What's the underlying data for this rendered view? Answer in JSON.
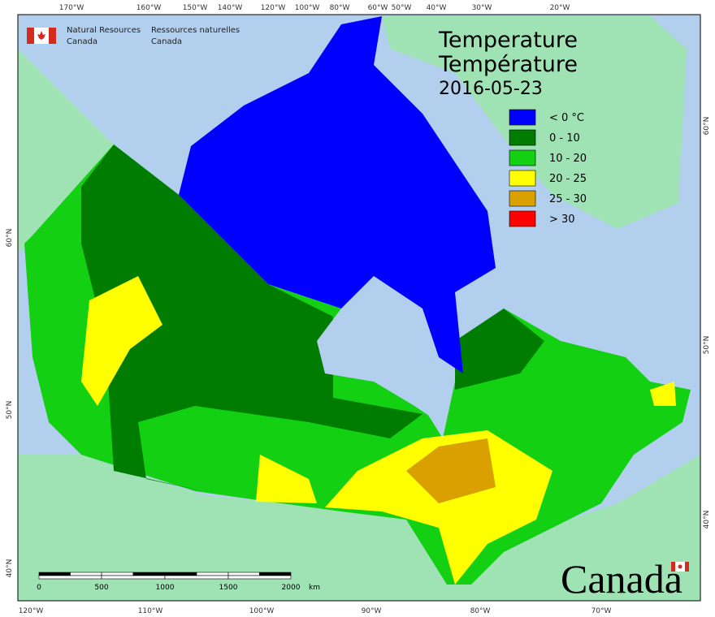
{
  "agency": {
    "en_line1": "Natural Resources",
    "en_line2": "Canada",
    "fr_line1": "Ressources naturelles",
    "fr_line2": "Canada"
  },
  "title": {
    "en": "Temperature",
    "fr": "Température",
    "date": "2016-05-23"
  },
  "legend": [
    {
      "label": "< 0 °C",
      "color": "#0000ff"
    },
    {
      "label": "0 - 10",
      "color": "#007d00"
    },
    {
      "label": "10 - 20",
      "color": "#13d013"
    },
    {
      "label": "20 - 25",
      "color": "#ffff00"
    },
    {
      "label": "25 - 30",
      "color": "#d9a000"
    },
    {
      "label": "> 30",
      "color": "#ff0000"
    }
  ],
  "graticule": {
    "top": [
      "170°W",
      "160°W",
      "150°W",
      "140°W",
      "120°W",
      "100°W",
      "80°W",
      "60°W",
      "50°W",
      "40°W",
      "30°W",
      "20°W"
    ],
    "bottom": [
      "120°W",
      "110°W",
      "100°W",
      "90°W",
      "80°W",
      "70°W"
    ],
    "left": [
      "60°N",
      "50°N",
      "40°N"
    ],
    "right": [
      "60°N",
      "50°N",
      "40°N"
    ]
  },
  "scale_bar": {
    "labels": [
      "0",
      "500",
      "1000",
      "1500",
      "2000"
    ],
    "unit": "km"
  },
  "wordmark": "Canada"
}
